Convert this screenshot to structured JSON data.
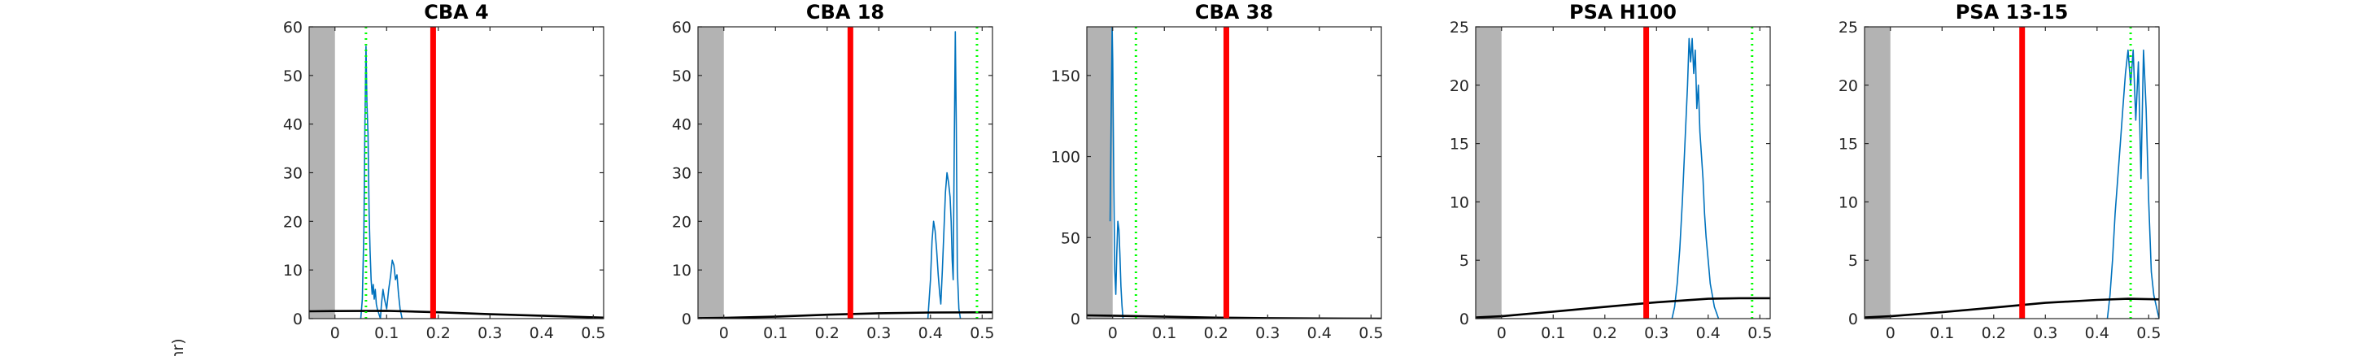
{
  "figure": {
    "ylabel": "nr)"
  },
  "colors": {
    "trace": "#0072BD",
    "model": "#000000",
    "red_line": "#FF0000",
    "green_line": "#00FF00",
    "shade": "#B3B3B3"
  },
  "chart_data": [
    {
      "type": "line",
      "title": "CBA 4",
      "xlim": [
        -0.05,
        0.52
      ],
      "ylim": [
        0,
        60
      ],
      "xticks": [
        0,
        0.1,
        0.2,
        0.3,
        0.4,
        0.5
      ],
      "xtick_labels": [
        "0",
        "0.1",
        "0.2",
        "0.3",
        "0.4",
        "0.5"
      ],
      "yticks": [
        0,
        10,
        20,
        30,
        40,
        50,
        60
      ],
      "ytick_labels": [
        "0",
        "10",
        "20",
        "30",
        "40",
        "50",
        "60"
      ],
      "shaded_region": [
        -0.05,
        0.0
      ],
      "red_vline": 0.19,
      "green_vline": 0.06,
      "series": [
        {
          "kind": "trace",
          "x": [
            0.05,
            0.053,
            0.056,
            0.058,
            0.06,
            0.062,
            0.064,
            0.066,
            0.068,
            0.07,
            0.072,
            0.074,
            0.076,
            0.078,
            0.08,
            0.082,
            0.085,
            0.088,
            0.09,
            0.093,
            0.096,
            0.1,
            0.104,
            0.108,
            0.111,
            0.114,
            0.117,
            0.12,
            0.123,
            0.126,
            0.13
          ],
          "y": [
            0,
            4,
            18,
            40,
            56,
            44,
            38,
            22,
            14,
            8,
            5,
            7,
            4,
            6,
            3,
            2,
            1,
            0,
            3,
            6,
            4,
            2,
            6,
            9,
            12,
            11,
            8,
            9,
            5,
            2,
            0
          ]
        },
        {
          "kind": "model",
          "x": [
            -0.05,
            0.0,
            0.1,
            0.2,
            0.3,
            0.4,
            0.52
          ],
          "y": [
            1.5,
            1.55,
            1.6,
            1.3,
            0.9,
            0.6,
            0.2
          ]
        }
      ]
    },
    {
      "type": "line",
      "title": "CBA 18",
      "xlim": [
        -0.05,
        0.52
      ],
      "ylim": [
        0,
        60
      ],
      "xticks": [
        0,
        0.1,
        0.2,
        0.3,
        0.4,
        0.5
      ],
      "xtick_labels": [
        "0",
        "0.1",
        "0.2",
        "0.3",
        "0.4",
        "0.5"
      ],
      "yticks": [
        0,
        10,
        20,
        30,
        40,
        50,
        60
      ],
      "ytick_labels": [
        "0",
        "10",
        "20",
        "30",
        "40",
        "50",
        "60"
      ],
      "shaded_region": [
        -0.05,
        0.0
      ],
      "red_vline": 0.245,
      "green_vline": 0.49,
      "series": [
        {
          "kind": "trace",
          "x": [
            0.395,
            0.4,
            0.403,
            0.406,
            0.409,
            0.412,
            0.415,
            0.418,
            0.42,
            0.423,
            0.426,
            0.429,
            0.432,
            0.435,
            0.438,
            0.44,
            0.442,
            0.444,
            0.446,
            0.448,
            0.45,
            0.452,
            0.455,
            0.458
          ],
          "y": [
            0,
            8,
            16,
            20,
            18,
            14,
            9,
            5,
            3,
            10,
            18,
            26,
            30,
            28,
            25,
            20,
            12,
            8,
            35,
            59,
            40,
            10,
            2,
            0
          ]
        },
        {
          "kind": "model",
          "x": [
            -0.05,
            0.0,
            0.1,
            0.2,
            0.3,
            0.4,
            0.52
          ],
          "y": [
            0.1,
            0.15,
            0.4,
            0.8,
            1.1,
            1.25,
            1.3
          ]
        }
      ]
    },
    {
      "type": "line",
      "title": "CBA 38",
      "xlim": [
        -0.05,
        0.52
      ],
      "ylim": [
        0,
        180
      ],
      "xticks": [
        0,
        0.1,
        0.2,
        0.3,
        0.4,
        0.5
      ],
      "xtick_labels": [
        "0",
        "0.1",
        "0.2",
        "0.3",
        "0.4",
        "0.5"
      ],
      "yticks": [
        0,
        50,
        100,
        150
      ],
      "ytick_labels": [
        "0",
        "50",
        "100",
        "150"
      ],
      "shaded_region": [
        -0.05,
        0.0
      ],
      "red_vline": 0.22,
      "green_vline": 0.045,
      "series": [
        {
          "kind": "trace",
          "x": [
            -0.005,
            -0.003,
            -0.001,
            0.0,
            0.002,
            0.004,
            0.006,
            0.008,
            0.01,
            0.012,
            0.014,
            0.016,
            0.018,
            0.02
          ],
          "y": [
            60,
            120,
            180,
            160,
            90,
            30,
            15,
            40,
            60,
            55,
            40,
            20,
            8,
            0
          ]
        },
        {
          "kind": "model",
          "x": [
            -0.05,
            0.0,
            0.1,
            0.2,
            0.3,
            0.4,
            0.52
          ],
          "y": [
            2.0,
            1.8,
            1.2,
            0.6,
            0.3,
            0.1,
            0.0
          ]
        }
      ]
    },
    {
      "type": "line",
      "title": "PSA H100",
      "xlim": [
        -0.05,
        0.52
      ],
      "ylim": [
        0,
        25
      ],
      "xticks": [
        0,
        0.1,
        0.2,
        0.3,
        0.4,
        0.5
      ],
      "xtick_labels": [
        "0",
        "0.1",
        "0.2",
        "0.3",
        "0.4",
        "0.5"
      ],
      "yticks": [
        0,
        5,
        10,
        15,
        20,
        25
      ],
      "ytick_labels": [
        "0",
        "5",
        "10",
        "15",
        "20",
        "25"
      ],
      "shaded_region": [
        -0.05,
        0.0
      ],
      "red_vline": 0.28,
      "green_vline": 0.485,
      "series": [
        {
          "kind": "trace",
          "x": [
            0.33,
            0.335,
            0.34,
            0.345,
            0.35,
            0.355,
            0.36,
            0.363,
            0.366,
            0.369,
            0.372,
            0.375,
            0.378,
            0.381,
            0.384,
            0.387,
            0.39,
            0.393,
            0.396,
            0.4,
            0.404,
            0.408,
            0.412,
            0.416,
            0.42
          ],
          "y": [
            0,
            1,
            3,
            6,
            10,
            15,
            20,
            24,
            22,
            24,
            21,
            23,
            18,
            20,
            16,
            14,
            12,
            9,
            7,
            5,
            3,
            2,
            1,
            0.5,
            0
          ]
        },
        {
          "kind": "model",
          "x": [
            -0.05,
            0.0,
            0.1,
            0.2,
            0.3,
            0.4,
            0.46,
            0.52
          ],
          "y": [
            0.1,
            0.2,
            0.6,
            1.0,
            1.4,
            1.7,
            1.75,
            1.75
          ]
        }
      ]
    },
    {
      "type": "line",
      "title": "PSA 13-15",
      "xlim": [
        -0.05,
        0.52
      ],
      "ylim": [
        0,
        25
      ],
      "xticks": [
        0,
        0.1,
        0.2,
        0.3,
        0.4,
        0.5
      ],
      "xtick_labels": [
        "0",
        "0.1",
        "0.2",
        "0.3",
        "0.4",
        "0.5"
      ],
      "yticks": [
        0,
        5,
        10,
        15,
        20,
        25
      ],
      "ytick_labels": [
        "0",
        "5",
        "10",
        "15",
        "20",
        "25"
      ],
      "shaded_region": [
        -0.05,
        0.0
      ],
      "red_vline": 0.255,
      "green_vline": 0.465,
      "series": [
        {
          "kind": "trace",
          "x": [
            0.42,
            0.425,
            0.43,
            0.435,
            0.44,
            0.445,
            0.45,
            0.455,
            0.46,
            0.465,
            0.47,
            0.475,
            0.48,
            0.485,
            0.49,
            0.495,
            0.5,
            0.505,
            0.51,
            0.515,
            0.52
          ],
          "y": [
            0,
            2,
            5,
            9,
            12,
            15,
            18,
            21,
            23,
            20,
            23,
            17,
            22,
            12,
            23,
            18,
            10,
            4,
            2,
            1,
            0
          ]
        },
        {
          "kind": "model",
          "x": [
            -0.05,
            0.0,
            0.1,
            0.2,
            0.3,
            0.4,
            0.46,
            0.52
          ],
          "y": [
            0.1,
            0.2,
            0.55,
            0.95,
            1.35,
            1.6,
            1.7,
            1.65
          ]
        }
      ]
    }
  ]
}
